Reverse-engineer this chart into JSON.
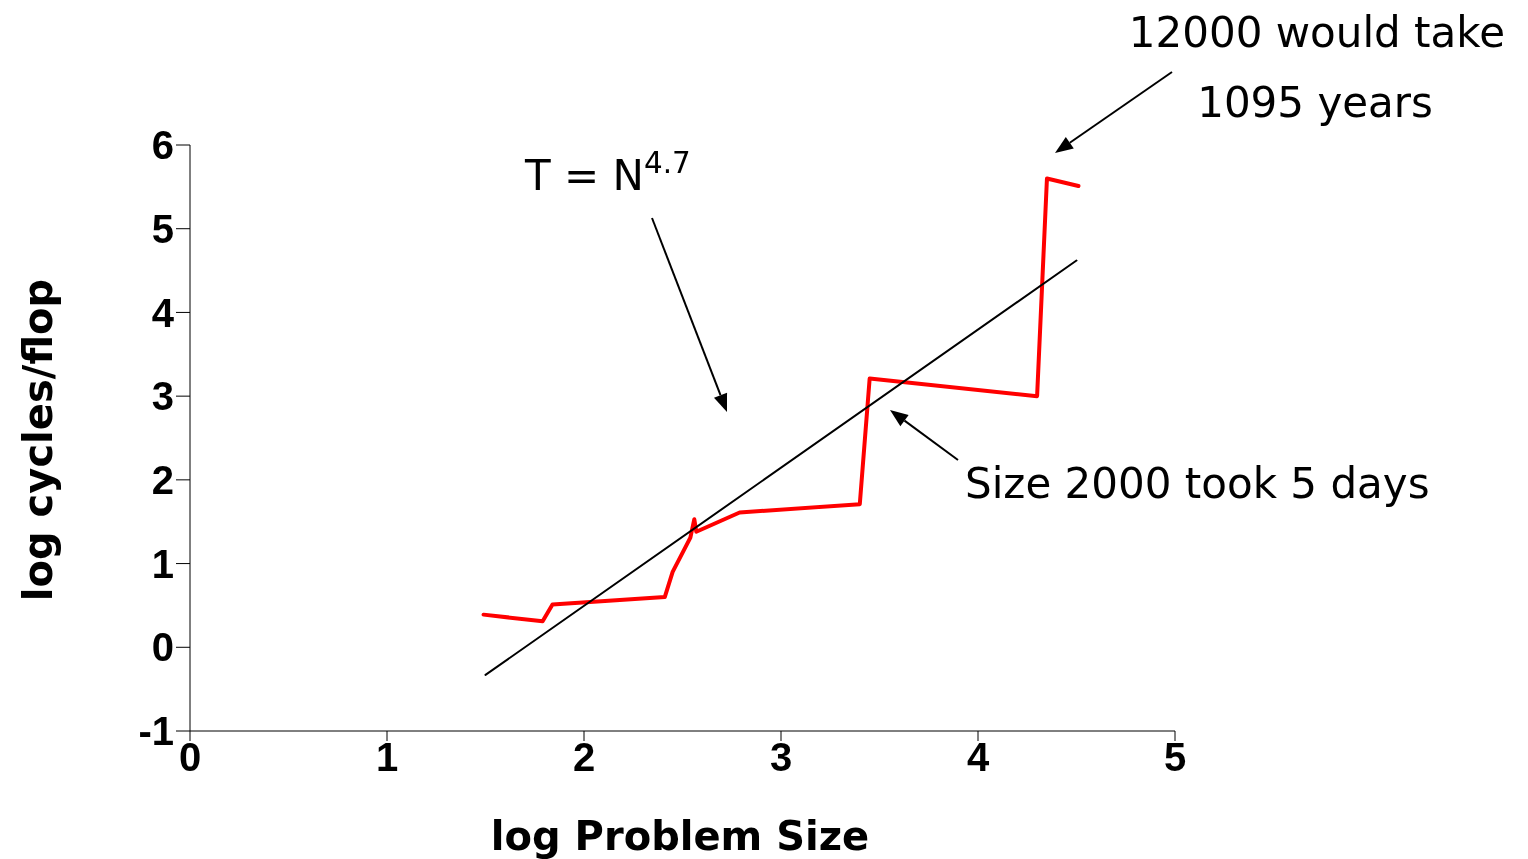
{
  "chart_data": {
    "type": "line",
    "xlabel": "log Problem Size",
    "ylabel": "log cycles/flop",
    "xlim": [
      0,
      5
    ],
    "xticks": [
      0,
      1,
      2,
      3,
      4,
      5
    ],
    "ylim": [
      -1,
      6
    ],
    "yticks": [
      -1,
      0,
      1,
      2,
      3,
      4,
      5,
      6
    ],
    "marker": "none",
    "line_style": "solid",
    "series": [
      {
        "color": "#ff0000",
        "x": [
          1.49,
          1.79,
          1.84,
          2.41,
          2.45,
          2.54,
          2.56,
          2.57,
          2.79,
          3.4,
          3.45,
          4.3,
          4.35,
          4.51
        ],
        "values": [
          0.39,
          0.31,
          0.51,
          0.6,
          0.9,
          1.31,
          1.53,
          1.38,
          1.61,
          1.71,
          3.21,
          3.0,
          5.6,
          5.51
        ]
      },
      {
        "color": "#000000",
        "x": [
          1.5,
          4.5
        ],
        "values": [
          -0.33,
          4.62
        ]
      }
    ],
    "annotations": [
      "T = N$^{4.7}$",
      "Size 2000 took 5 days",
      "12000 would take 1095 years"
    ]
  }
}
